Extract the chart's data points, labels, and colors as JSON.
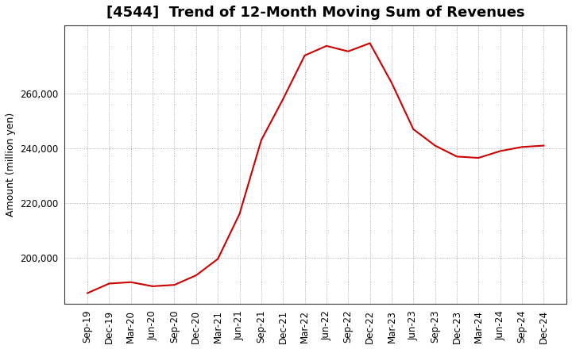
{
  "title": "[4544]  Trend of 12-Month Moving Sum of Revenues",
  "ylabel": "Amount (million yen)",
  "line_color": "#cc0000",
  "background_color": "#ffffff",
  "plot_background": "#ffffff",
  "grid_color": "#999999",
  "x_labels": [
    "Sep-19",
    "Dec-19",
    "Mar-20",
    "Jun-20",
    "Sep-20",
    "Dec-20",
    "Mar-21",
    "Jun-21",
    "Sep-21",
    "Dec-21",
    "Mar-22",
    "Jun-22",
    "Sep-22",
    "Dec-22",
    "Mar-23",
    "Jun-23",
    "Sep-23",
    "Dec-23",
    "Mar-24",
    "Jun-24",
    "Sep-24",
    "Dec-24"
  ],
  "values": [
    187000,
    190500,
    191000,
    189500,
    190000,
    193500,
    199500,
    216000,
    243000,
    258000,
    274000,
    277500,
    275500,
    278500,
    264000,
    247000,
    241000,
    237000,
    236500,
    239000,
    240500,
    241000
  ],
  "ylim_min": 183000,
  "ylim_max": 285000,
  "yticks": [
    200000,
    220000,
    240000,
    260000
  ],
  "title_fontsize": 13,
  "axis_fontsize": 9,
  "tick_fontsize": 8.5
}
